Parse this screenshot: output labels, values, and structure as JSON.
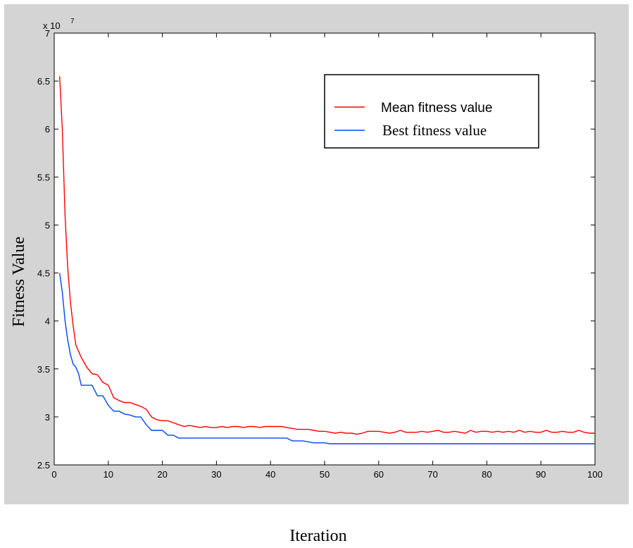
{
  "chart_data": {
    "type": "line",
    "title": "",
    "xlabel": "Iteration",
    "ylabel": "Fitness Value",
    "xlim": [
      0,
      100
    ],
    "ylim": [
      2.5,
      7
    ],
    "y_exponent_label": "x 10",
    "y_exponent_power": "7",
    "x_ticks": [
      "0",
      "10",
      "20",
      "30",
      "40",
      "50",
      "60",
      "70",
      "80",
      "90",
      "100"
    ],
    "y_ticks": [
      "2.5",
      "3",
      "3.5",
      "4",
      "4.5",
      "5",
      "5.5",
      "6",
      "6.5",
      "7"
    ],
    "grid": false,
    "legend_position": "top-right",
    "series": [
      {
        "name": "Mean fitness value",
        "color": "#ff0000",
        "points": [
          [
            1,
            6.55
          ],
          [
            1.5,
            6.0
          ],
          [
            2,
            5.1
          ],
          [
            2.5,
            4.55
          ],
          [
            3,
            4.2
          ],
          [
            3.5,
            3.95
          ],
          [
            4,
            3.75
          ],
          [
            5,
            3.62
          ],
          [
            6,
            3.52
          ],
          [
            7,
            3.45
          ],
          [
            8,
            3.44
          ],
          [
            9,
            3.36
          ],
          [
            10,
            3.33
          ],
          [
            11,
            3.2
          ],
          [
            12,
            3.17
          ],
          [
            13,
            3.15
          ],
          [
            14,
            3.15
          ],
          [
            15,
            3.13
          ],
          [
            16,
            3.11
          ],
          [
            17,
            3.08
          ],
          [
            18,
            3.0
          ],
          [
            19,
            2.97
          ],
          [
            20,
            2.96
          ],
          [
            21,
            2.96
          ],
          [
            22,
            2.94
          ],
          [
            23,
            2.92
          ],
          [
            24,
            2.9
          ],
          [
            25,
            2.91
          ],
          [
            26,
            2.9
          ],
          [
            27,
            2.89
          ],
          [
            28,
            2.9
          ],
          [
            29,
            2.89
          ],
          [
            30,
            2.89
          ],
          [
            31,
            2.9
          ],
          [
            32,
            2.89
          ],
          [
            33,
            2.9
          ],
          [
            34,
            2.9
          ],
          [
            35,
            2.89
          ],
          [
            36,
            2.9
          ],
          [
            37,
            2.9
          ],
          [
            38,
            2.89
          ],
          [
            39,
            2.9
          ],
          [
            40,
            2.9
          ],
          [
            41,
            2.9
          ],
          [
            42,
            2.9
          ],
          [
            43,
            2.89
          ],
          [
            44,
            2.88
          ],
          [
            45,
            2.87
          ],
          [
            46,
            2.87
          ],
          [
            47,
            2.87
          ],
          [
            48,
            2.86
          ],
          [
            49,
            2.85
          ],
          [
            50,
            2.85
          ],
          [
            51,
            2.84
          ],
          [
            52,
            2.83
          ],
          [
            53,
            2.84
          ],
          [
            54,
            2.83
          ],
          [
            55,
            2.83
          ],
          [
            56,
            2.82
          ],
          [
            57,
            2.83
          ],
          [
            58,
            2.85
          ],
          [
            59,
            2.85
          ],
          [
            60,
            2.85
          ],
          [
            61,
            2.84
          ],
          [
            62,
            2.83
          ],
          [
            63,
            2.84
          ],
          [
            64,
            2.86
          ],
          [
            65,
            2.84
          ],
          [
            66,
            2.84
          ],
          [
            67,
            2.84
          ],
          [
            68,
            2.85
          ],
          [
            69,
            2.84
          ],
          [
            70,
            2.85
          ],
          [
            71,
            2.86
          ],
          [
            72,
            2.84
          ],
          [
            73,
            2.84
          ],
          [
            74,
            2.85
          ],
          [
            75,
            2.84
          ],
          [
            76,
            2.83
          ],
          [
            77,
            2.86
          ],
          [
            78,
            2.84
          ],
          [
            79,
            2.85
          ],
          [
            80,
            2.85
          ],
          [
            81,
            2.84
          ],
          [
            82,
            2.85
          ],
          [
            83,
            2.84
          ],
          [
            84,
            2.85
          ],
          [
            85,
            2.84
          ],
          [
            86,
            2.86
          ],
          [
            87,
            2.84
          ],
          [
            88,
            2.85
          ],
          [
            89,
            2.84
          ],
          [
            90,
            2.84
          ],
          [
            91,
            2.86
          ],
          [
            92,
            2.84
          ],
          [
            93,
            2.84
          ],
          [
            94,
            2.85
          ],
          [
            95,
            2.84
          ],
          [
            96,
            2.84
          ],
          [
            97,
            2.86
          ],
          [
            98,
            2.84
          ],
          [
            99,
            2.83
          ],
          [
            100,
            2.83
          ]
        ]
      },
      {
        "name": "Best fitness value",
        "color": "#0044ff",
        "points": [
          [
            1,
            4.5
          ],
          [
            1.5,
            4.3
          ],
          [
            2,
            4.0
          ],
          [
            2.5,
            3.8
          ],
          [
            3,
            3.65
          ],
          [
            3.5,
            3.55
          ],
          [
            4,
            3.52
          ],
          [
            4.5,
            3.45
          ],
          [
            5,
            3.33
          ],
          [
            6,
            3.33
          ],
          [
            7,
            3.33
          ],
          [
            8,
            3.22
          ],
          [
            9,
            3.22
          ],
          [
            10,
            3.12
          ],
          [
            11,
            3.06
          ],
          [
            12,
            3.06
          ],
          [
            13,
            3.03
          ],
          [
            14,
            3.02
          ],
          [
            15,
            3.0
          ],
          [
            16,
            3.0
          ],
          [
            17,
            2.92
          ],
          [
            18,
            2.86
          ],
          [
            19,
            2.86
          ],
          [
            20,
            2.86
          ],
          [
            21,
            2.81
          ],
          [
            22,
            2.81
          ],
          [
            23,
            2.78
          ],
          [
            24,
            2.78
          ],
          [
            25,
            2.78
          ],
          [
            30,
            2.78
          ],
          [
            35,
            2.78
          ],
          [
            40,
            2.78
          ],
          [
            43,
            2.78
          ],
          [
            44,
            2.75
          ],
          [
            46,
            2.75
          ],
          [
            47,
            2.74
          ],
          [
            48,
            2.73
          ],
          [
            50,
            2.73
          ],
          [
            51,
            2.72
          ],
          [
            55,
            2.72
          ],
          [
            60,
            2.72
          ],
          [
            70,
            2.72
          ],
          [
            80,
            2.72
          ],
          [
            90,
            2.72
          ],
          [
            100,
            2.72
          ]
        ]
      }
    ]
  }
}
